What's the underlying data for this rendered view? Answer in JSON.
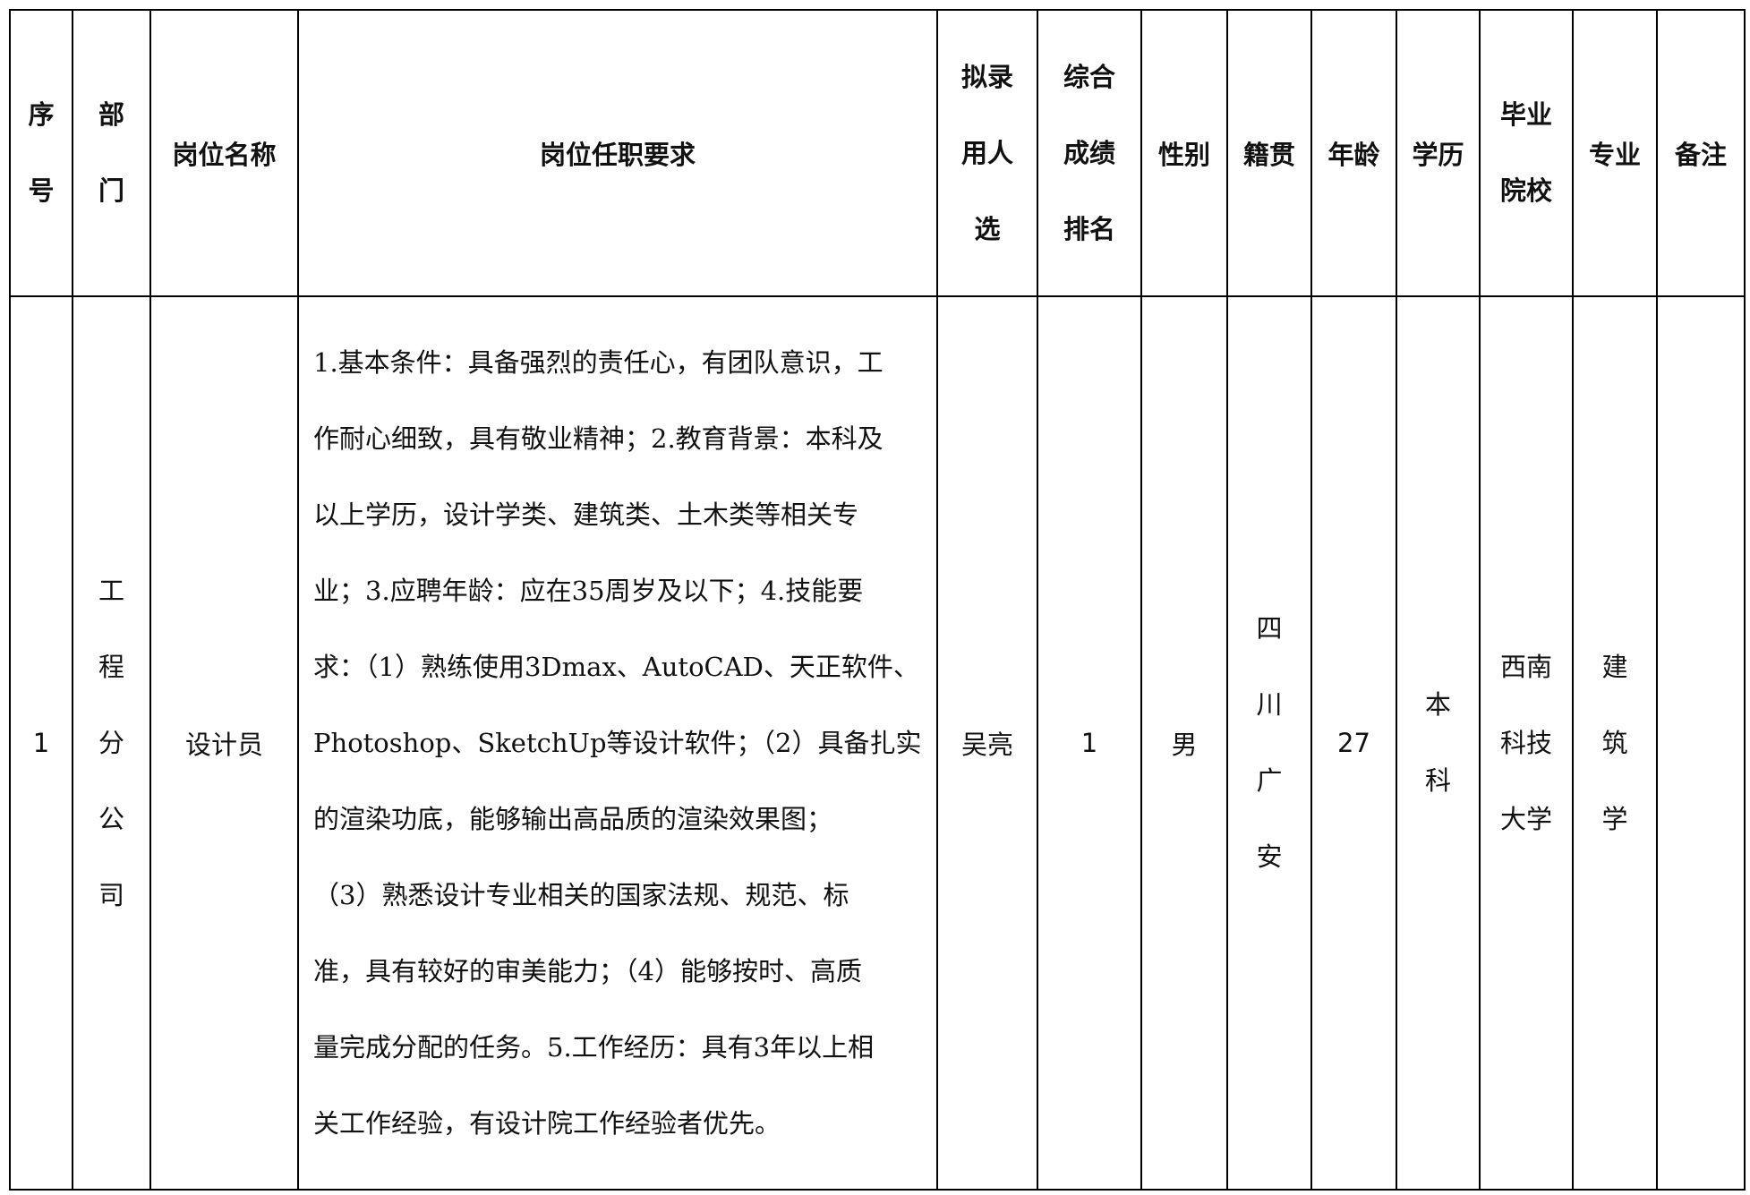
{
  "headers": {
    "index": "序号",
    "department": "部门",
    "position": "岗位名称",
    "requirements": "岗位任职要求",
    "candidate": "拟录用人选",
    "rank": "综合成绩排名",
    "gender": "性别",
    "origin": "籍贯",
    "age": "年龄",
    "education": "学历",
    "school": "毕业院校",
    "major": "专业",
    "remarks": "备注"
  },
  "rows": [
    {
      "index": "1",
      "department": "工程分公司",
      "position": "设计员",
      "requirements_lines": [
        "1.基本条件：具备强烈的责任心，有团队意识，工",
        "作耐心细致，具有敬业精神；2.教育背景：本科及",
        "以上学历，设计学类、建筑类、土木类等相关专",
        "业；3.应聘年龄：应在35周岁及以下；4.技能要",
        "求：（1）熟练使用3Dmax、AutoCAD、天正软件、",
        "Photoshop、SketchUp等设计软件；（2）具备扎实",
        "的渲染功底，能够输出高品质的渲染效果图；",
        "（3）熟悉设计专业相关的国家法规、规范、标",
        "准，具有较好的审美能力；（4）能够按时、高质",
        "量完成分配的任务。5.工作经历：具有3年以上相",
        "关工作经验，有设计院工作经验者优先。"
      ],
      "candidate": "吴亮",
      "rank": "1",
      "gender": "男",
      "origin": "四川广安",
      "age": "27",
      "education": "本科",
      "school": "西南科技大学",
      "major": "建筑学",
      "remarks": ""
    }
  ]
}
